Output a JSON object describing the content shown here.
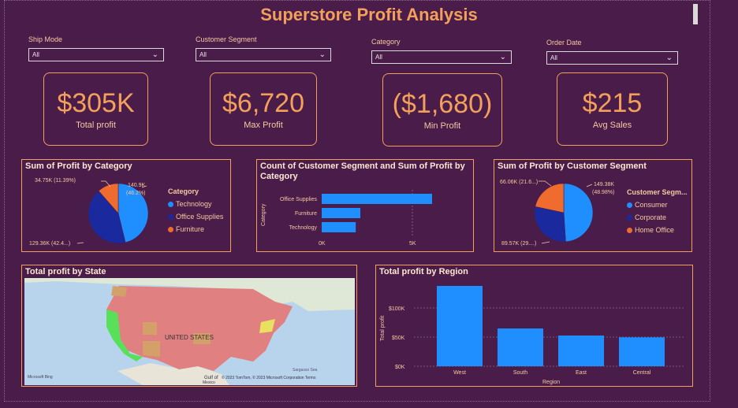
{
  "title": "Superstore Profit Analysis",
  "slicers": [
    {
      "label": "Ship Mode",
      "value": "All"
    },
    {
      "label": "Customer Segment",
      "value": "All"
    },
    {
      "label": "Category",
      "value": "All"
    },
    {
      "label": "Order Date",
      "value": "All"
    }
  ],
  "cards": [
    {
      "value": "$305K",
      "label": "Total profit"
    },
    {
      "value": "$6,720",
      "label": "Max Profit"
    },
    {
      "value": "($1,680)",
      "label": "Min Profit"
    },
    {
      "value": "$215",
      "label": "Avg Sales"
    }
  ],
  "pie_category": {
    "title": "Sum of Profit by Category",
    "label_top": "34.75K (11.39%)",
    "label_right_1": "140.9K",
    "label_right_2": "(46.2%)",
    "label_bottom": "129.36K (42.4...)",
    "legend_title": "Category",
    "legend": [
      "Technology",
      "Office Supplies",
      "Furniture"
    ]
  },
  "bar_segment": {
    "title_1": "Count of Customer Segment and Sum of Profit by",
    "title_2": "Category",
    "ylabel": "Category",
    "ticks": [
      "0K",
      "5K"
    ]
  },
  "pie_segment": {
    "title": "Sum of Profit by Customer Segment",
    "label_top": "66.06K (21.6...)",
    "label_right_1": "149.38K",
    "label_right_2": "(48.98%)",
    "label_bottom": "89.57K (29....)",
    "legend_title": "Customer Segm...",
    "legend": [
      "Consumer",
      "Corporate",
      "Home Office"
    ]
  },
  "map": {
    "title": "Total profit by State",
    "country_label": "UNITED STATES",
    "sea_label": "Sargasso Sea",
    "gulf_label": "Gulf of",
    "copyright": "© 2023 TomTom, © 2023 Microsoft Corporation  Terms",
    "mexico_label": "Mexico",
    "brand": "Microsoft Bing"
  },
  "region_chart": {
    "title": "Total profit by Region",
    "xlabel": "Region",
    "ylabel": "Total profit",
    "ticks": [
      "$100K",
      "$50K",
      "$0K"
    ]
  },
  "colors": {
    "accent": "#f2a05a",
    "bar": "#1f8fff",
    "bg": "#4a1c4a",
    "pie_light": "#1f8fff",
    "pie_dark": "#1a2a9e",
    "pie_orange": "#ef6c2e"
  },
  "chart_data": [
    {
      "type": "pie",
      "title": "Sum of Profit by Category",
      "categories": [
        "Technology",
        "Office Supplies",
        "Furniture"
      ],
      "values": [
        140.9,
        129.36,
        34.75
      ],
      "units": "K"
    },
    {
      "type": "bar",
      "title": "Count of Customer Segment and Sum of Profit by Category",
      "orientation": "horizontal",
      "categories": [
        "Office Supplies",
        "Furniture",
        "Technology"
      ],
      "values": [
        6000,
        2100,
        1850
      ],
      "xlim": [
        0,
        6000
      ],
      "ylabel": "Category"
    },
    {
      "type": "pie",
      "title": "Sum of Profit by Customer Segment",
      "categories": [
        "Consumer",
        "Corporate",
        "Home Office"
      ],
      "values": [
        149.38,
        89.57,
        66.06
      ],
      "units": "K"
    },
    {
      "type": "bar",
      "title": "Total profit by Region",
      "categories": [
        "West",
        "South",
        "East",
        "Central"
      ],
      "values": [
        136000,
        64000,
        52000,
        49000
      ],
      "ylim": [
        0,
        136000
      ],
      "xlabel": "Region",
      "ylabel": "Total profit"
    }
  ]
}
